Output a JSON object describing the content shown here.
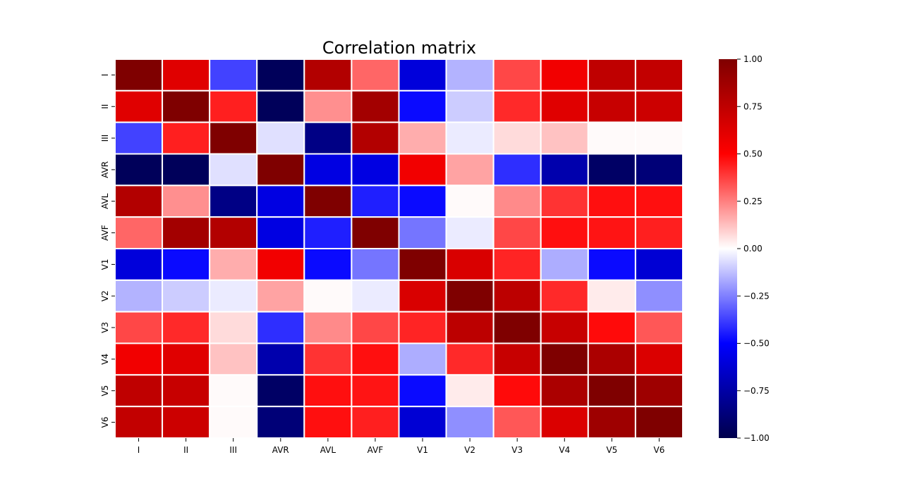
{
  "chart_data": {
    "type": "heatmap",
    "title": "Correlation matrix",
    "xlabel": "",
    "ylabel": "",
    "x_labels": [
      "I",
      "II",
      "III",
      "AVR",
      "AVL",
      "AVF",
      "V1",
      "V2",
      "V3",
      "V4",
      "V5",
      "V6"
    ],
    "y_labels": [
      "I",
      "II",
      "III",
      "AVR",
      "AVL",
      "AVF",
      "V1",
      "V2",
      "V3",
      "V4",
      "V5",
      "V6"
    ],
    "values": [
      [
        1.0,
        0.62,
        -0.37,
        -0.96,
        0.8,
        0.3,
        -0.6,
        -0.15,
        0.36,
        0.55,
        0.75,
        0.74
      ],
      [
        0.62,
        1.0,
        0.44,
        -0.96,
        0.22,
        0.86,
        -0.48,
        -0.1,
        0.42,
        0.62,
        0.72,
        0.7
      ],
      [
        -0.37,
        0.44,
        1.0,
        -0.06,
        -0.84,
        0.8,
        0.16,
        -0.04,
        0.07,
        0.12,
        0.01,
        0.01
      ],
      [
        -0.96,
        -0.96,
        -0.06,
        1.0,
        -0.58,
        -0.58,
        0.55,
        0.18,
        -0.41,
        -0.73,
        -0.93,
        -0.88
      ],
      [
        0.8,
        0.22,
        -0.84,
        -0.58,
        1.0,
        -0.44,
        -0.48,
        0.01,
        0.23,
        0.4,
        0.47,
        0.47
      ],
      [
        0.3,
        0.86,
        0.8,
        -0.58,
        -0.44,
        1.0,
        -0.27,
        -0.04,
        0.36,
        0.47,
        0.46,
        0.44
      ],
      [
        -0.6,
        -0.48,
        0.16,
        0.55,
        -0.48,
        -0.27,
        1.0,
        0.65,
        0.43,
        -0.16,
        -0.48,
        -0.62
      ],
      [
        -0.15,
        -0.1,
        -0.04,
        0.18,
        0.01,
        -0.04,
        0.65,
        1.0,
        0.76,
        0.42,
        0.04,
        -0.22
      ],
      [
        0.36,
        0.42,
        0.07,
        -0.41,
        0.23,
        0.36,
        0.43,
        0.76,
        1.0,
        0.72,
        0.48,
        0.33
      ],
      [
        0.55,
        0.62,
        0.12,
        -0.73,
        0.4,
        0.47,
        -0.16,
        0.42,
        0.72,
        1.0,
        0.83,
        0.64
      ],
      [
        0.75,
        0.72,
        0.01,
        -0.93,
        0.47,
        0.46,
        -0.48,
        0.04,
        0.48,
        0.83,
        1.0,
        0.88
      ],
      [
        0.74,
        0.7,
        0.01,
        -0.88,
        0.47,
        0.44,
        -0.62,
        -0.22,
        0.33,
        0.64,
        0.88,
        1.0
      ]
    ],
    "colormap": "seismic",
    "vmin": -1.0,
    "vmax": 1.0,
    "colorbar_ticks": [
      "1.00",
      "0.75",
      "0.50",
      "0.25",
      "0.00",
      "−0.25",
      "−0.50",
      "−0.75",
      "−1.00"
    ],
    "colorbar_tick_values": [
      1.0,
      0.75,
      0.5,
      0.25,
      0.0,
      -0.25,
      -0.5,
      -0.75,
      -1.0
    ],
    "cell_border_color": "#ffffff"
  }
}
